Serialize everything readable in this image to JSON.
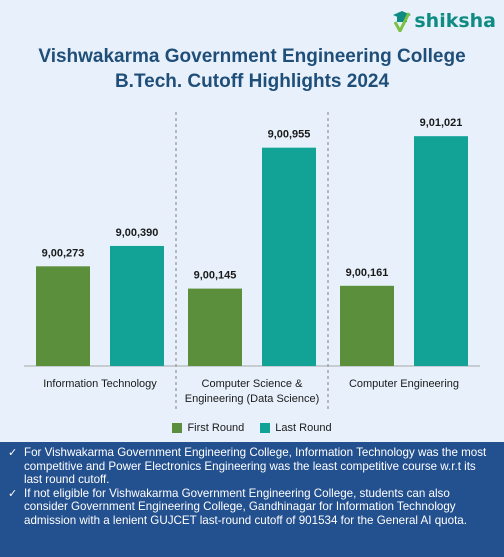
{
  "logo": {
    "text": "shiksha"
  },
  "title_lines": [
    "Vishwakarma Government Engineering College",
    "B.Tech. Cutoff Highlights 2024"
  ],
  "chart_data": {
    "type": "bar",
    "title": "Vishwakarma Government Engineering College B.Tech. Cutoff Highlights 2024",
    "categories": [
      [
        "Information Technology"
      ],
      [
        "Computer Science &",
        "Engineering (Data Science)"
      ],
      [
        "Computer Engineering"
      ]
    ],
    "series": [
      {
        "name": "First Round",
        "color": "#5b8f3c",
        "values": [
          900273,
          900145,
          900161
        ],
        "labels": [
          "9,00,273",
          "9,00,145",
          "9,00,161"
        ]
      },
      {
        "name": "Last Round",
        "color": "#13a396",
        "values": [
          900390,
          900955,
          901021
        ],
        "labels": [
          "9,00,390",
          "9,00,955",
          "9,01,021"
        ]
      }
    ],
    "ylim": [
      899700,
      901160
    ],
    "grid": false,
    "legend": "bottom"
  },
  "legend": [
    {
      "label": "First Round",
      "color": "#5b8f3c"
    },
    {
      "label": "Last Round",
      "color": "#13a396"
    }
  ],
  "notes": [
    "For Vishwakarma Government Engineering College, Information Technology was the most competitive and Power Electronics Engineering was the least competitive course w.r.t its last round cutoff.",
    "If not eligible for Vishwakarma Government Engineering College, students can also consider Government Engineering College, Gandhinagar for Information Technology admission with a lenient GUJCET last-round cutoff of 901534 for the General AI quota."
  ],
  "colors": {
    "title": "#1f4e79",
    "notes_bg": "#23508e",
    "background": "#e8f1fb"
  }
}
